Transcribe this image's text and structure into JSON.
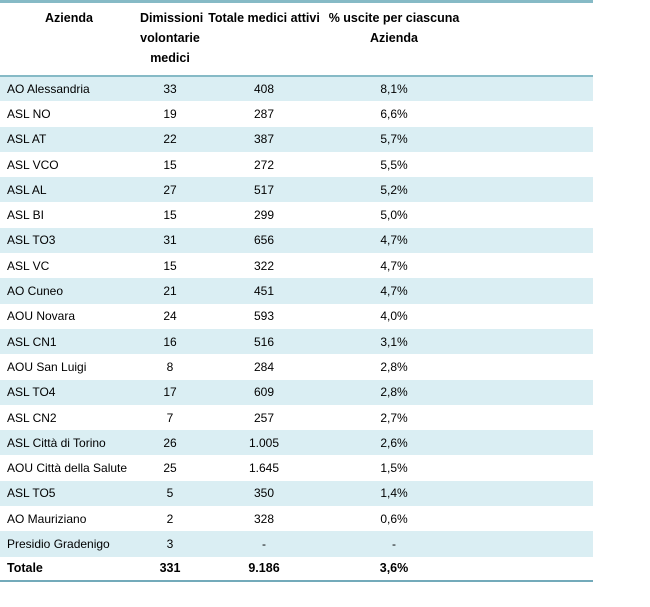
{
  "table": {
    "headers": [
      "Azienda",
      "Dimissioni volontarie medici",
      "Totale medici attivi",
      "% uscite per ciascuna Azienda"
    ],
    "rows": [
      [
        "AO Alessandria",
        "33",
        "408",
        "8,1%"
      ],
      [
        "ASL NO",
        "19",
        "287",
        "6,6%"
      ],
      [
        "ASL AT",
        "22",
        "387",
        "5,7%"
      ],
      [
        "ASL VCO",
        "15",
        "272",
        "5,5%"
      ],
      [
        "ASL AL",
        "27",
        "517",
        "5,2%"
      ],
      [
        "ASL BI",
        "15",
        "299",
        "5,0%"
      ],
      [
        "ASL TO3",
        "31",
        "656",
        "4,7%"
      ],
      [
        "ASL VC",
        "15",
        "322",
        "4,7%"
      ],
      [
        "AO Cuneo",
        "21",
        "451",
        "4,7%"
      ],
      [
        "AOU Novara",
        "24",
        "593",
        "4,0%"
      ],
      [
        "ASL CN1",
        "16",
        "516",
        "3,1%"
      ],
      [
        "AOU San Luigi",
        "8",
        "284",
        "2,8%"
      ],
      [
        "ASL TO4",
        "17",
        "609",
        "2,8%"
      ],
      [
        "ASL CN2",
        "7",
        "257",
        "2,7%"
      ],
      [
        "ASL Città di Torino",
        "26",
        "1.005",
        "2,6%"
      ],
      [
        "AOU Città della Salute",
        "25",
        "1.645",
        "1,5%"
      ],
      [
        "ASL TO5",
        "5",
        "350",
        "1,4%"
      ],
      [
        "AO Mauriziano",
        "2",
        "328",
        "0,6%"
      ],
      [
        "Presidio Gradenigo",
        "3",
        "-",
        "-"
      ]
    ],
    "total": [
      "Totale",
      "331",
      "9.186",
      "3,6%"
    ],
    "colors": {
      "stripe": "#DAEEF3",
      "border_teal": "#86BAC6",
      "border_bottom": "#73AABA",
      "text": "#000000"
    }
  }
}
